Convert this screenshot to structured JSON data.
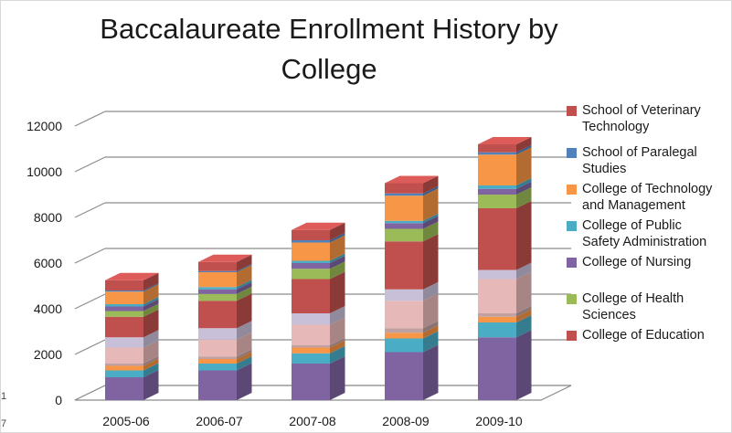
{
  "chart_data": {
    "type": "bar",
    "stacked": true,
    "three_d": true,
    "title": "Baccalaureate Enrollment History by College",
    "xlabel": "",
    "ylabel": "",
    "ylim": [
      0,
      12000
    ],
    "y_ticks": [
      "0",
      "2000",
      "4000",
      "6000",
      "8000",
      "10000",
      "12000"
    ],
    "grid": true,
    "legend_position": "right",
    "categories": [
      "2005-06",
      "2006-07",
      "2007-08",
      "2008-09",
      "2009-10"
    ],
    "series": [
      {
        "name": "",
        "color": "#8064a2",
        "values": [
          1000,
          1300,
          1600,
          2100,
          2750
        ]
      },
      {
        "name": "",
        "color": "#4bacc6",
        "values": [
          300,
          300,
          450,
          600,
          650
        ]
      },
      {
        "name": "",
        "color": "#f79646",
        "values": [
          200,
          200,
          250,
          250,
          250
        ]
      },
      {
        "name": "",
        "color": "#c0a0a0",
        "values": [
          100,
          100,
          100,
          200,
          150
        ]
      },
      {
        "name": "",
        "color": "#e6b9b8",
        "values": [
          700,
          750,
          900,
          1200,
          1500
        ]
      },
      {
        "name": "",
        "color": "#c8c0d8",
        "values": [
          450,
          500,
          500,
          500,
          400
        ]
      },
      {
        "name": "College of Education",
        "color": "#c0504d",
        "values": [
          900,
          1200,
          1500,
          2100,
          2700
        ]
      },
      {
        "name": "College of Health Sciences",
        "color": "#9bbb59",
        "values": [
          250,
          300,
          450,
          550,
          600
        ]
      },
      {
        "name": "College of Nursing",
        "color": "#8064a2",
        "values": [
          200,
          200,
          250,
          250,
          250
        ]
      },
      {
        "name": "College of Public Safety Administration",
        "color": "#4bacc6",
        "values": [
          100,
          100,
          100,
          100,
          150
        ]
      },
      {
        "name": "College of Technology and Management",
        "color": "#f79646",
        "values": [
          550,
          650,
          800,
          1100,
          1350
        ]
      },
      {
        "name": "School of Paralegal Studies",
        "color": "#4f81bd",
        "values": [
          50,
          50,
          100,
          100,
          100
        ]
      },
      {
        "name": "School of Veterinary Technology",
        "color": "#c0504d",
        "values": [
          450,
          400,
          450,
          450,
          350
        ]
      }
    ],
    "legend": [
      {
        "name": "School of Veterinary Technology",
        "color": "#c0504d"
      },
      {
        "name": "School of Paralegal Studies",
        "color": "#4f81bd"
      },
      {
        "name": "College of Technology and Management",
        "color": "#f79646"
      },
      {
        "name": "College of Public Safety Administration",
        "color": "#4bacc6"
      },
      {
        "name": "College of Nursing",
        "color": "#8064a2"
      },
      {
        "name": "College of Health Sciences",
        "color": "#9bbb59"
      },
      {
        "name": "College of Education",
        "color": "#c0504d"
      }
    ]
  },
  "legend_lines": [
    [
      "School of Veterinary",
      "Technology"
    ],
    [
      "School of Paralegal",
      "Studies"
    ],
    [
      "College of Technology",
      "and Management"
    ],
    [
      "College of Public",
      "Safety Administration"
    ],
    [
      "College of Nursing"
    ],
    [
      "College of Health",
      "Sciences"
    ],
    [
      "College of Education"
    ]
  ],
  "edge_marks": [
    "1",
    "7"
  ]
}
